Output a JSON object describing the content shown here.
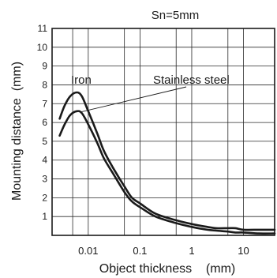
{
  "chart_data": {
    "type": "line",
    "title": "Sn=5mm",
    "xlabel": "Object thickness    (mm)",
    "ylabel": "Mounting distance  (mm)",
    "x_scale": "log",
    "xlim": [
      0.002,
      40
    ],
    "ylim": [
      0,
      11
    ],
    "y_ticks": [
      1,
      2,
      3,
      4,
      5,
      6,
      7,
      8,
      9,
      10,
      11
    ],
    "x_ticks": [
      {
        "value": 0.01,
        "label": "0.01"
      },
      {
        "value": 0.1,
        "label": "0.1"
      },
      {
        "value": 1,
        "label": "1"
      },
      {
        "value": 10,
        "label": "10"
      }
    ],
    "grid": true,
    "series": [
      {
        "name": "Iron",
        "x": [
          0.0028,
          0.0035,
          0.0045,
          0.006,
          0.0075,
          0.01,
          0.015,
          0.02,
          0.03,
          0.05,
          0.07,
          0.1,
          0.2,
          0.5,
          1,
          2,
          3,
          5,
          7,
          10,
          20,
          40
        ],
        "y": [
          6.2,
          6.9,
          7.4,
          7.6,
          7.4,
          6.6,
          5.4,
          4.5,
          3.6,
          2.6,
          2.0,
          1.7,
          1.15,
          0.8,
          0.6,
          0.45,
          0.38,
          0.38,
          0.38,
          0.3,
          0.3,
          0.3
        ]
      },
      {
        "name": "Stainless steel",
        "x": [
          0.0028,
          0.0035,
          0.0045,
          0.006,
          0.0075,
          0.01,
          0.015,
          0.02,
          0.03,
          0.05,
          0.07,
          0.1,
          0.2,
          0.5,
          1,
          2,
          3,
          5,
          7,
          10,
          20,
          40
        ],
        "y": [
          5.3,
          5.9,
          6.4,
          6.6,
          6.5,
          5.9,
          4.9,
          4.1,
          3.3,
          2.3,
          1.8,
          1.5,
          1.0,
          0.65,
          0.45,
          0.3,
          0.25,
          0.2,
          0.15,
          0.15,
          0.1,
          0.1
        ]
      }
    ],
    "annotations": [
      {
        "text": "Iron",
        "series": "Iron"
      },
      {
        "text": "Stainless steel",
        "series": "Stainless steel"
      }
    ]
  }
}
